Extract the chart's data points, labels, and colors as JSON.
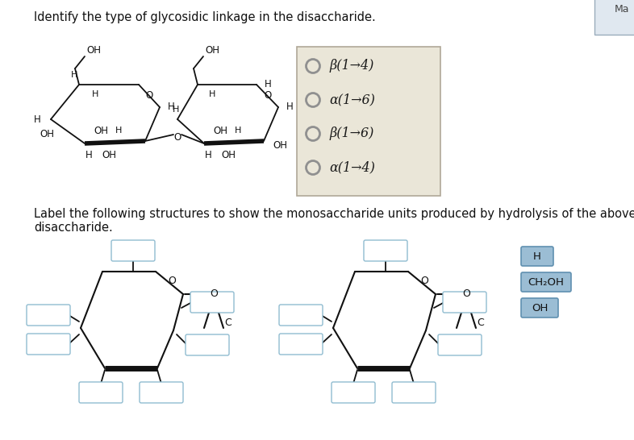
{
  "title": "Identify the type of glycosidic linkage in the disaccharide.",
  "label_text": "Label the following structures to show the monosaccharide units produced by hydrolysis of the above\ndisaccharide.",
  "radio_options": [
    "β(1→4)",
    "α(1→6)",
    "β(1→6)",
    "α(1→4)"
  ],
  "radio_box_color": "#eae6d8",
  "radio_box_edge": "#b0a898",
  "bg_color": "#ffffff",
  "text_color": "#1a1a1a",
  "lbc": "#daeef8",
  "lbe": "#90bcd0",
  "drag_btn_color": "#9bbdd4",
  "drag_btn_edge": "#6090b0"
}
